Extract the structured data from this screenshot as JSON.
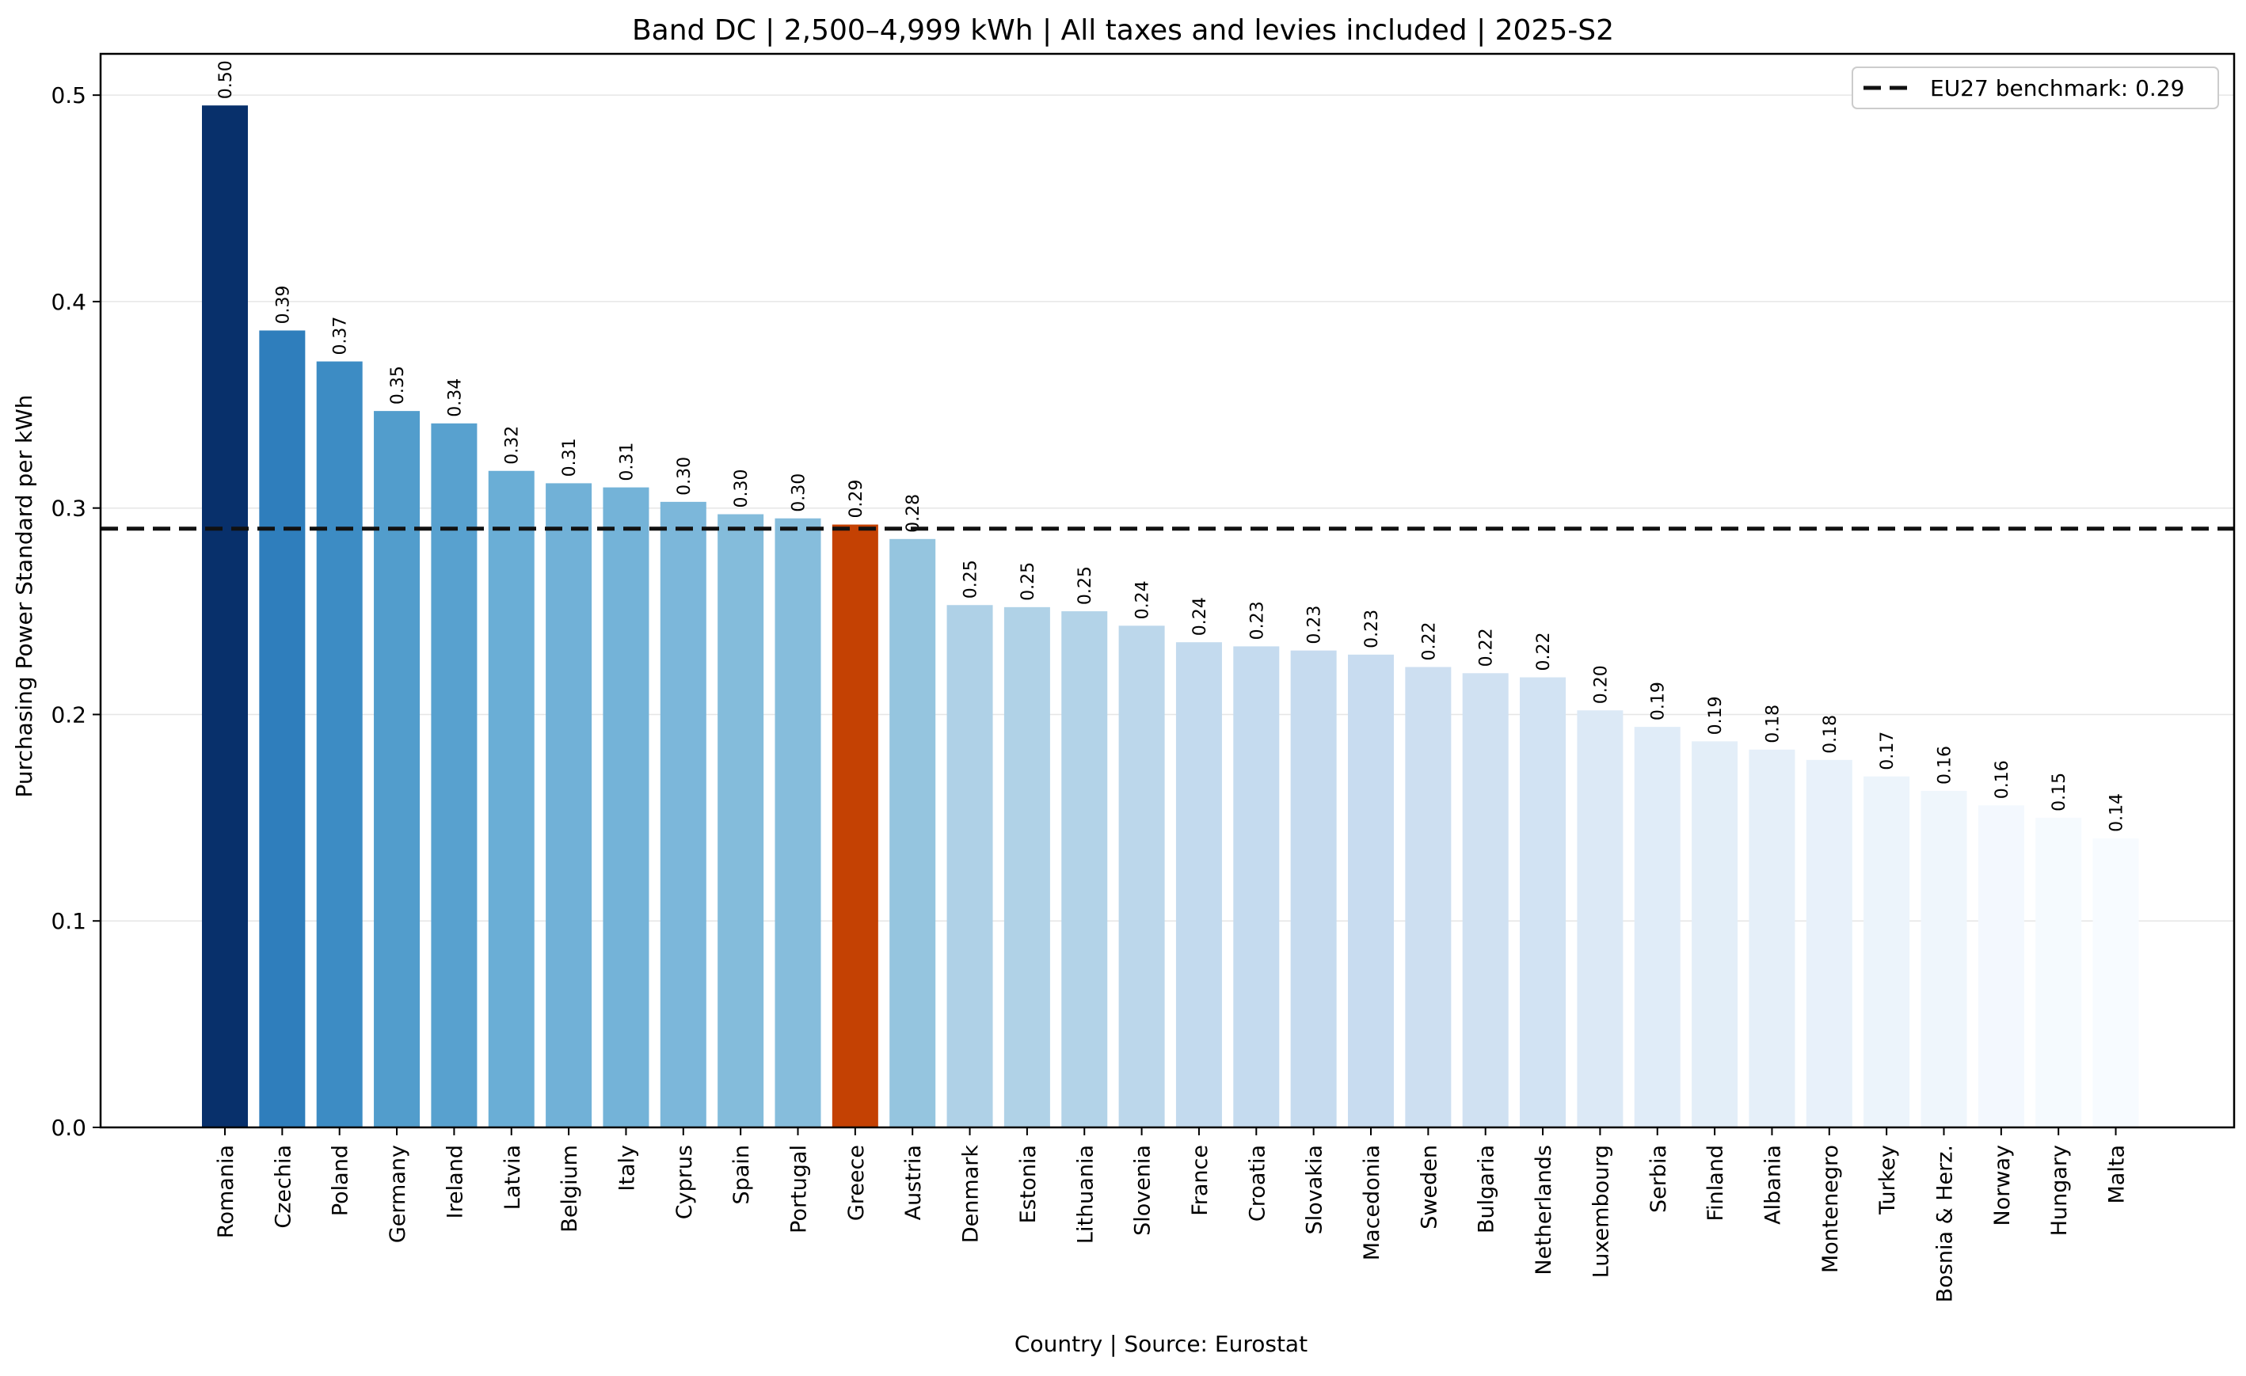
{
  "chart_data": {
    "type": "bar",
    "title": "Band DC | 2,500–4,999 kWh | All taxes and levies included | 2025-S2",
    "xlabel": "Country | Source: Eurostat",
    "ylabel": "Purchasing Power Standard per kWh",
    "ylim": [
      0,
      0.52
    ],
    "yticks": [
      0.0,
      0.1,
      0.2,
      0.3,
      0.4,
      0.5
    ],
    "ytick_labels": [
      "0.0",
      "0.1",
      "0.2",
      "0.3",
      "0.4",
      "0.5"
    ],
    "grid": "horizontal",
    "legend_position": "top-right",
    "categories": [
      "Romania",
      "Czechia",
      "Poland",
      "Germany",
      "Ireland",
      "Latvia",
      "Belgium",
      "Italy",
      "Cyprus",
      "Spain",
      "Portugal",
      "Greece",
      "Austria",
      "Denmark",
      "Estonia",
      "Lithuania",
      "Slovenia",
      "France",
      "Croatia",
      "Slovakia",
      "Macedonia",
      "Sweden",
      "Bulgaria",
      "Netherlands",
      "Luxembourg",
      "Serbia",
      "Finland",
      "Albania",
      "Montenegro",
      "Turkey",
      "Bosnia & Herz.",
      "Norway",
      "Hungary",
      "Malta"
    ],
    "values": [
      0.495,
      0.386,
      0.371,
      0.347,
      0.341,
      0.318,
      0.312,
      0.31,
      0.303,
      0.297,
      0.295,
      0.292,
      0.285,
      0.253,
      0.252,
      0.25,
      0.243,
      0.235,
      0.233,
      0.231,
      0.229,
      0.223,
      0.22,
      0.218,
      0.202,
      0.194,
      0.187,
      0.183,
      0.178,
      0.17,
      0.163,
      0.156,
      0.15,
      0.14
    ],
    "value_labels": [
      "0.50",
      "0.39",
      "0.37",
      "0.35",
      "0.34",
      "0.32",
      "0.31",
      "0.31",
      "0.30",
      "0.30",
      "0.30",
      "0.29",
      "0.28",
      "0.25",
      "0.25",
      "0.25",
      "0.24",
      "0.24",
      "0.23",
      "0.23",
      "0.23",
      "0.22",
      "0.22",
      "0.22",
      "0.20",
      "0.19",
      "0.19",
      "0.18",
      "0.18",
      "0.17",
      "0.16",
      "0.16",
      "0.15",
      "0.14"
    ],
    "colors": [
      "#08306b",
      "#2f7ebc",
      "#3d8cc4",
      "#529dcc",
      "#58a1cf",
      "#6aaed6",
      "#71b1d7",
      "#74b3d8",
      "#7cb7da",
      "#84bcdb",
      "#86bddc",
      "#c44103",
      "#95c5df",
      "#afd1e7",
      "#b0d2e7",
      "#b3d3e8",
      "#bcd7eb",
      "#c3daee",
      "#c5dbef",
      "#c6dbef",
      "#c8dcf0",
      "#cddff1",
      "#d0e1f2",
      "#d2e3f3",
      "#dce9f6",
      "#e0ecf8",
      "#e3eef8",
      "#e5eff9",
      "#e8f1fa",
      "#ecf4fb",
      "#eff6fc",
      "#f3f8fe",
      "#f5fafe",
      "#f7fbff"
    ],
    "highlight": "Greece",
    "reference_line": {
      "value": 0.29,
      "label": "EU27 benchmark: 0.29",
      "style": "dashed",
      "color": "#111111"
    }
  }
}
